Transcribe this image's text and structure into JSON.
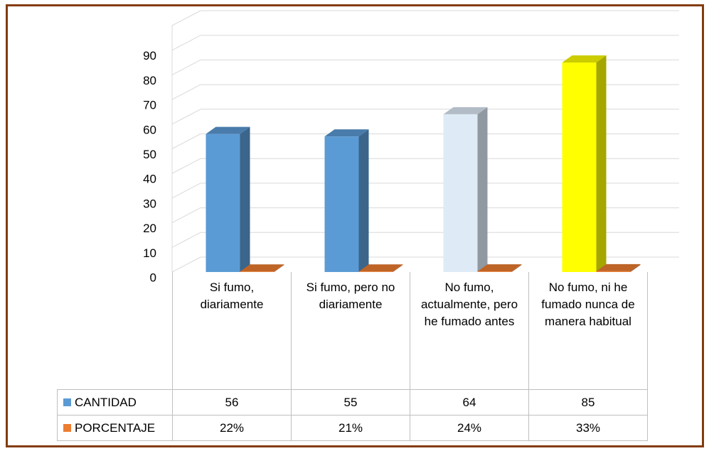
{
  "chart_data": {
    "type": "bar3d",
    "categories": [
      "Si fumo, diariamente",
      "Si fumo, pero no diariamente",
      "No fumo, actualmente, pero he fumado antes",
      "No fumo, ni he fumado nunca de manera habitual"
    ],
    "series": [
      {
        "name": "CANTIDAD",
        "color": "#5b9bd5",
        "colors": [
          "#5b9bd5",
          "#5b9bd5",
          "#deebf7",
          "#ffff00"
        ],
        "values": [
          56,
          55,
          64,
          85
        ]
      },
      {
        "name": "PORCENTAJE",
        "color": "#ed7d31",
        "values": [
          0.22,
          0.21,
          0.24,
          0.33
        ],
        "value_labels": [
          "22%",
          "21%",
          "24%",
          "33%"
        ]
      }
    ],
    "ylim": [
      0,
      100
    ],
    "yticks": [
      0,
      10,
      20,
      30,
      40,
      50,
      60,
      70,
      80,
      90
    ],
    "grid": true
  }
}
